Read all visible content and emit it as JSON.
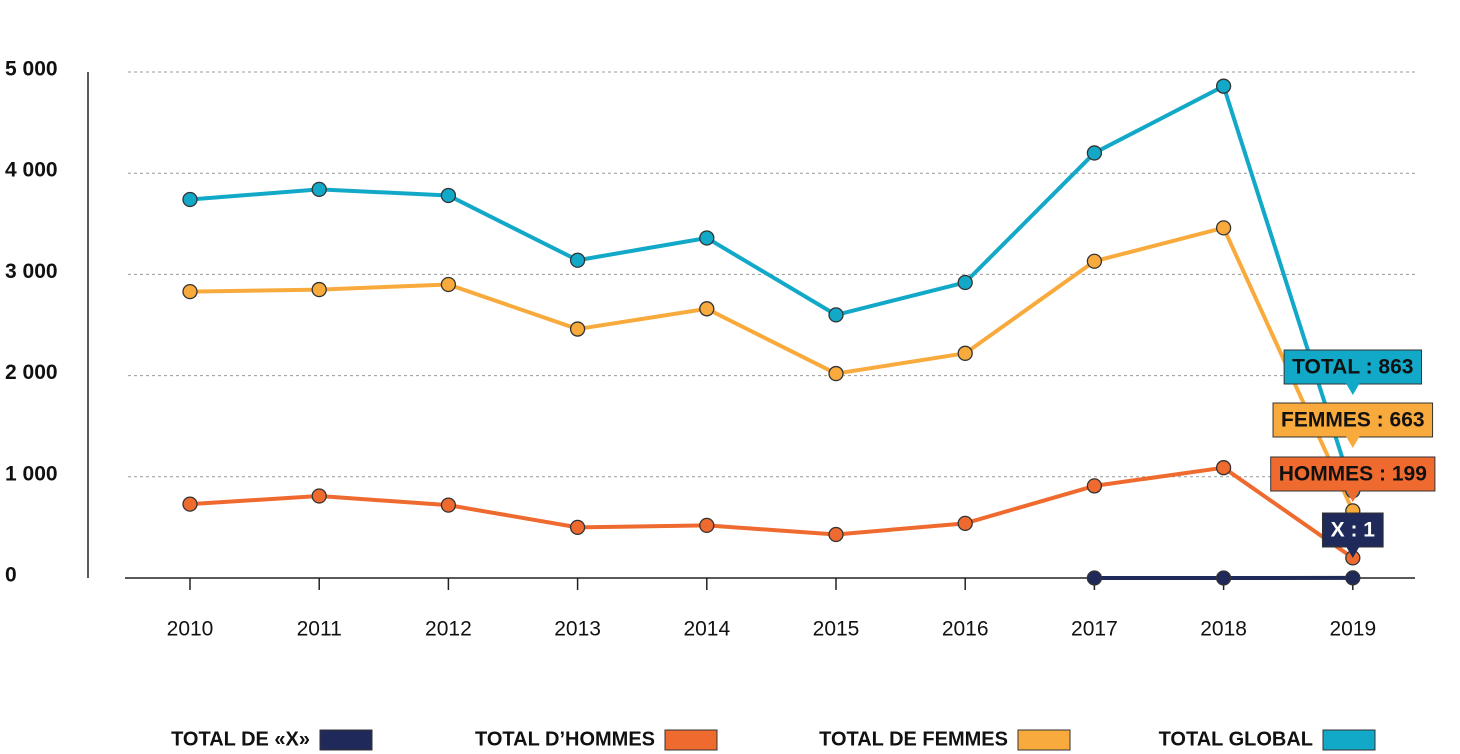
{
  "chart_data": {
    "type": "line",
    "categories": [
      "2010",
      "2011",
      "2012",
      "2013",
      "2014",
      "2015",
      "2016",
      "2017",
      "2018",
      "2019"
    ],
    "series": [
      {
        "name": "TOTAL DE «X»",
        "color": "#1f2a5a",
        "values": [
          null,
          null,
          null,
          null,
          null,
          null,
          null,
          0,
          0,
          1
        ],
        "value_labels": [
          null,
          null,
          null,
          null,
          null,
          null,
          null,
          null,
          null,
          "X : 1"
        ]
      },
      {
        "name": "TOTAL D’HOMMES",
        "color": "#ef6a2e",
        "values": [
          730,
          810,
          720,
          500,
          520,
          430,
          540,
          910,
          1090,
          199
        ],
        "value_labels": [
          null,
          null,
          null,
          null,
          null,
          null,
          null,
          null,
          null,
          "HOMMES : 199"
        ]
      },
      {
        "name": "TOTAL DE FEMMES",
        "color": "#f8ab3c",
        "values": [
          2830,
          2850,
          2900,
          2460,
          2660,
          2020,
          2220,
          3130,
          3460,
          663
        ],
        "value_labels": [
          null,
          null,
          null,
          null,
          null,
          null,
          null,
          null,
          null,
          "FEMMES : 663"
        ]
      },
      {
        "name": "TOTAL GLOBAL",
        "color": "#12a9c9",
        "values": [
          3740,
          3840,
          3780,
          3140,
          3360,
          2600,
          2920,
          4200,
          4860,
          863
        ],
        "value_labels": [
          null,
          null,
          null,
          null,
          null,
          null,
          null,
          null,
          null,
          "TOTAL : 863"
        ]
      }
    ],
    "ylim": [
      0,
      5000
    ],
    "yticks": [
      0,
      {
        "value": 1000,
        "label": "1 000"
      },
      {
        "value": 2000,
        "label": "2 000"
      },
      {
        "value": 3000,
        "label": "3 000"
      },
      {
        "value": 4000,
        "label": "4 000"
      },
      {
        "value": 5000,
        "label": "5 000"
      }
    ],
    "grid": true,
    "legend": "bottom"
  }
}
